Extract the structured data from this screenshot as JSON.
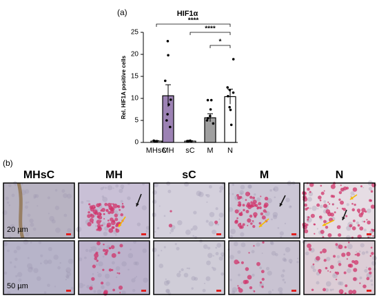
{
  "chart_data": {
    "type": "bar",
    "panel_label": "(a)",
    "title": "HIF1α",
    "ylabel": "Rel. HIF1A positive cells",
    "categories": [
      "MHsC",
      "MH",
      "sC",
      "M",
      "N"
    ],
    "values": [
      0.3,
      10.6,
      0.3,
      5.6,
      10.4
    ],
    "errors": [
      0.1,
      2.5,
      0.1,
      0.9,
      1.7
    ],
    "colors": [
      "#ffffff",
      "#9c82b4",
      "#ffffff",
      "#a0a0a0",
      "#ffffff"
    ],
    "points": [
      [
        0.2,
        0.3,
        0.4,
        0.3
      ],
      [
        23,
        19.8,
        14,
        9.7,
        8.6,
        6.4,
        5,
        3.5
      ],
      [
        0.2,
        0.3,
        0.4,
        0.3
      ],
      [
        9.6,
        9.6,
        7.5,
        6,
        5.5,
        5,
        4.3
      ],
      [
        18.9,
        12.5,
        11.9,
        11.3,
        10.5,
        8,
        7.4,
        4
      ]
    ],
    "ylim": [
      0,
      25
    ],
    "yticks": [
      0,
      5,
      10,
      15,
      20,
      25
    ],
    "significance": [
      {
        "between": [
          "MHsC",
          "N"
        ],
        "label": "****"
      },
      {
        "between": [
          "sC",
          "N"
        ],
        "label": "****"
      },
      {
        "between": [
          "M",
          "N"
        ],
        "label": "*"
      }
    ]
  },
  "micrographs": {
    "panel_label": "(b)",
    "columns": [
      "MHsC",
      "MH",
      "sC",
      "M",
      "N"
    ],
    "scale_labels": [
      "20 µm",
      "50 µm"
    ]
  }
}
